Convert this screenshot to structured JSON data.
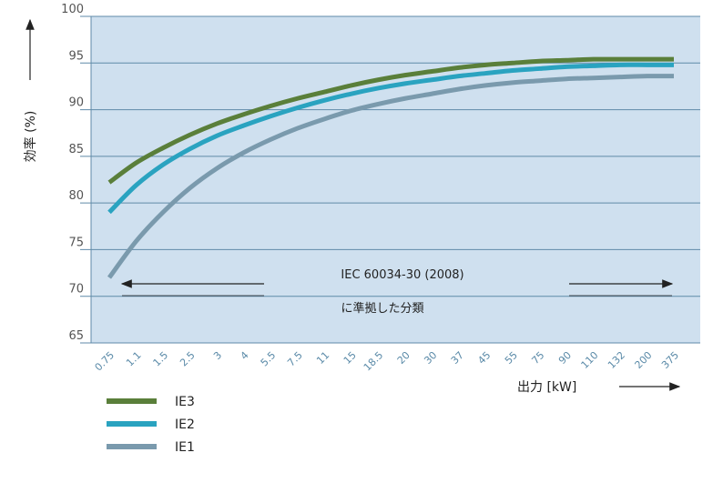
{
  "chart_data": {
    "type": "line",
    "ylabel": "効率 (%)",
    "xlabel": "出力 [kW]",
    "ylim": [
      65,
      100
    ],
    "yticks": [
      65,
      70,
      75,
      80,
      85,
      90,
      95,
      100
    ],
    "categories": [
      "0.75",
      "1.1",
      "1.5",
      "2.5",
      "3",
      "4",
      "5.5",
      "7.5",
      "11",
      "15",
      "18.5",
      "20",
      "30",
      "37",
      "45",
      "55",
      "75",
      "90",
      "110",
      "132",
      "200",
      "375"
    ],
    "grid": true,
    "background_color": "#cfe0ef",
    "annotation": {
      "line1": "IEC 60034-30 (2008)",
      "line2": "に準拠した分類"
    },
    "series": [
      {
        "name": "IE3",
        "color": "#5a7f3a",
        "values": [
          82.2,
          84.3,
          85.9,
          87.3,
          88.5,
          89.5,
          90.4,
          91.2,
          91.9,
          92.6,
          93.2,
          93.7,
          94.1,
          94.5,
          94.8,
          95.0,
          95.2,
          95.3,
          95.4,
          95.4,
          95.4,
          95.4
        ]
      },
      {
        "name": "IE2",
        "color": "#2aa3c0",
        "values": [
          79.0,
          81.9,
          84.1,
          85.8,
          87.2,
          88.3,
          89.3,
          90.2,
          91.0,
          91.7,
          92.3,
          92.8,
          93.2,
          93.6,
          93.9,
          94.2,
          94.4,
          94.6,
          94.7,
          94.8,
          94.8,
          94.8
        ]
      },
      {
        "name": "IE1",
        "color": "#7a9aad",
        "values": [
          72.0,
          75.9,
          79.0,
          81.6,
          83.7,
          85.4,
          86.8,
          88.0,
          89.0,
          89.9,
          90.6,
          91.2,
          91.7,
          92.2,
          92.6,
          92.9,
          93.1,
          93.3,
          93.4,
          93.5,
          93.6,
          93.6
        ]
      }
    ]
  }
}
